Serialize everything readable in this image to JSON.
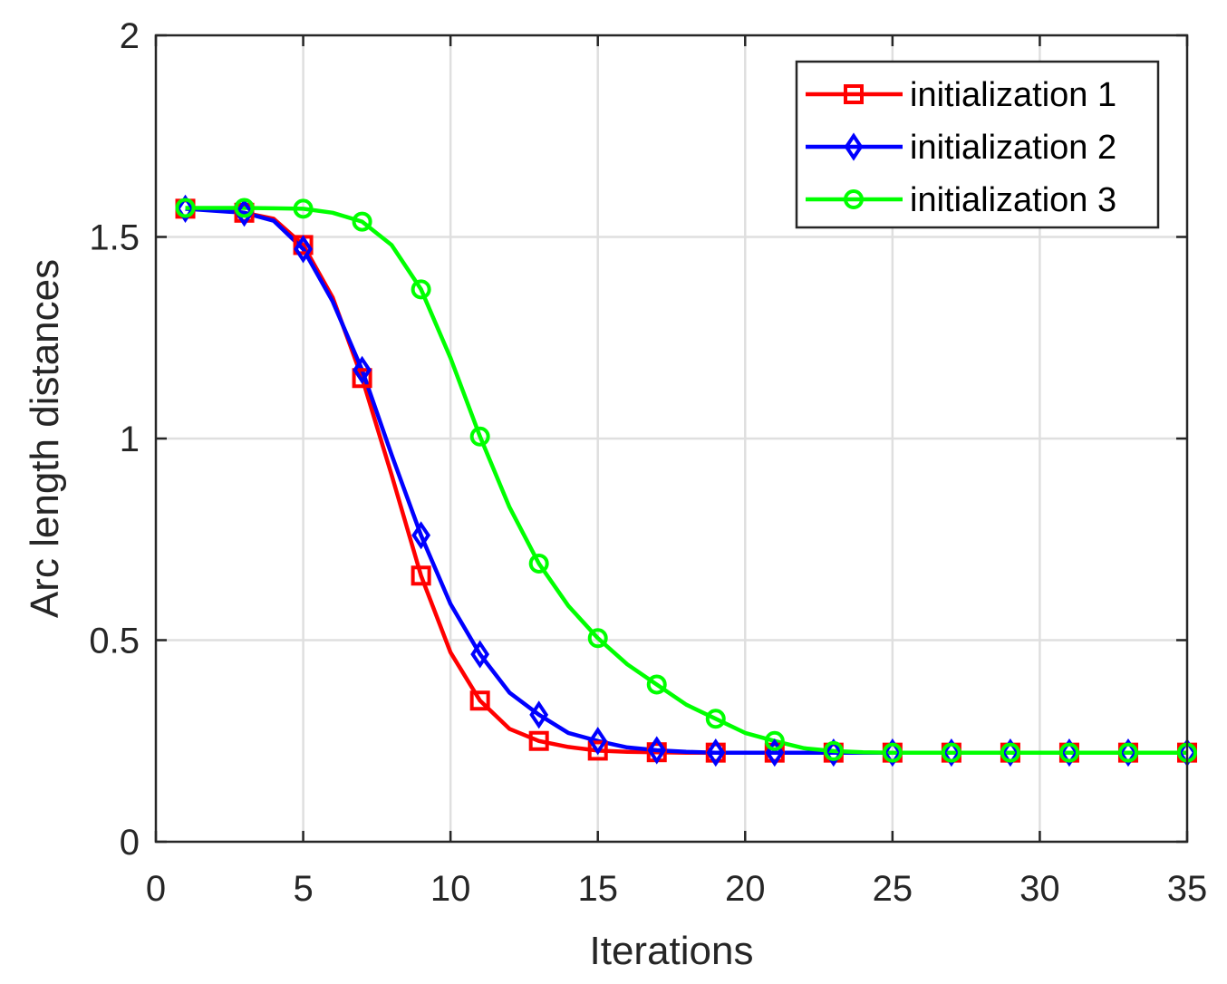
{
  "chart_data": {
    "type": "line",
    "title": "",
    "xlabel": "Iterations",
    "ylabel": "Arc length distances",
    "xlim": [
      0,
      35
    ],
    "ylim": [
      0,
      2
    ],
    "xticks": [
      0,
      5,
      10,
      15,
      20,
      25,
      30,
      35
    ],
    "xtick_labels": [
      "0",
      "5",
      "10",
      "15",
      "20",
      "25",
      "30",
      "35"
    ],
    "yticks": [
      0,
      0.5,
      1,
      1.5,
      2
    ],
    "ytick_labels": [
      "0",
      "0.5",
      "1",
      "1.5",
      "2"
    ],
    "grid": true,
    "legend_position": "top-right",
    "x": [
      1,
      2,
      3,
      4,
      5,
      6,
      7,
      8,
      9,
      10,
      11,
      12,
      13,
      14,
      15,
      16,
      17,
      18,
      19,
      20,
      21,
      22,
      23,
      24,
      25,
      26,
      27,
      28,
      29,
      30,
      31,
      32,
      33,
      34,
      35
    ],
    "series": [
      {
        "name": "initialization 1",
        "color": "#ff0000",
        "marker": "square",
        "values": [
          1.57,
          1.57,
          1.56,
          1.545,
          1.48,
          1.35,
          1.15,
          0.91,
          0.66,
          0.47,
          0.35,
          0.28,
          0.25,
          0.235,
          0.226,
          0.223,
          0.222,
          0.221,
          0.221,
          0.221,
          0.221,
          0.221,
          0.221,
          0.221,
          0.221,
          0.221,
          0.221,
          0.221,
          0.221,
          0.221,
          0.221,
          0.221,
          0.221,
          0.221,
          0.221
        ]
      },
      {
        "name": "initialization 2",
        "color": "#0000ff",
        "marker": "diamond",
        "values": [
          1.57,
          1.565,
          1.56,
          1.54,
          1.47,
          1.34,
          1.17,
          0.96,
          0.76,
          0.59,
          0.465,
          0.37,
          0.315,
          0.27,
          0.25,
          0.234,
          0.227,
          0.223,
          0.221,
          0.221,
          0.221,
          0.221,
          0.221,
          0.221,
          0.221,
          0.221,
          0.221,
          0.221,
          0.221,
          0.221,
          0.221,
          0.221,
          0.221,
          0.221,
          0.221
        ]
      },
      {
        "name": "initialization 3",
        "color": "#00ff00",
        "marker": "circle",
        "values": [
          1.572,
          1.572,
          1.572,
          1.571,
          1.57,
          1.56,
          1.538,
          1.48,
          1.37,
          1.2,
          1.005,
          0.83,
          0.69,
          0.585,
          0.505,
          0.44,
          0.39,
          0.34,
          0.305,
          0.27,
          0.25,
          0.232,
          0.225,
          0.222,
          0.221,
          0.221,
          0.221,
          0.221,
          0.221,
          0.221,
          0.221,
          0.221,
          0.221,
          0.221,
          0.221
        ]
      }
    ]
  }
}
